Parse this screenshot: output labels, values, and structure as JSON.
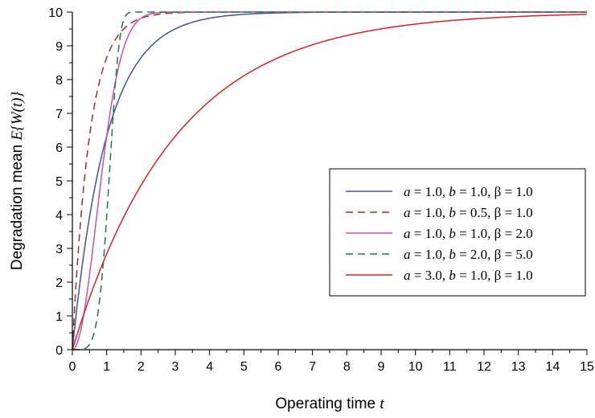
{
  "chart_data": {
    "type": "line",
    "xlabel": {
      "text": "Operating time",
      "symbol": "t"
    },
    "ylabel": {
      "text": "Degradation mean",
      "symbol": "E{W(t)}"
    },
    "xlim": [
      0,
      15
    ],
    "ylim": [
      0,
      10
    ],
    "xticks": [
      0,
      1,
      2,
      3,
      4,
      5,
      6,
      7,
      8,
      9,
      10,
      11,
      12,
      13,
      14,
      15
    ],
    "yticks": [
      0,
      1,
      2,
      3,
      4,
      5,
      6,
      7,
      8,
      9,
      10
    ],
    "grid": false,
    "legend_position": "right",
    "asymptote": 10,
    "series": [
      {
        "name": "a = 1.0, b = 1.0, β = 1.0",
        "a": 1.0,
        "b": 1.0,
        "beta": 1.0,
        "color": "#3a55a0",
        "dash": "solid"
      },
      {
        "name": "a = 1.0, b = 0.5, β = 1.0",
        "a": 1.0,
        "b": 0.5,
        "beta": 1.0,
        "color": "#a52a2a",
        "dash": "dashed"
      },
      {
        "name": "a = 1.0, b = 1.0, β = 2.0",
        "a": 1.0,
        "b": 1.0,
        "beta": 2.0,
        "color": "#c050c0",
        "dash": "solid"
      },
      {
        "name": "a = 1.0, b = 2.0, β = 5.0",
        "a": 1.0,
        "b": 2.0,
        "beta": 5.0,
        "color": "#1e7a3e",
        "dash": "dashed"
      },
      {
        "name": "a = 3.0, b = 1.0, β = 1.0",
        "a": 3.0,
        "b": 1.0,
        "beta": 1.0,
        "color": "#e02020",
        "dash": "solid"
      }
    ]
  }
}
